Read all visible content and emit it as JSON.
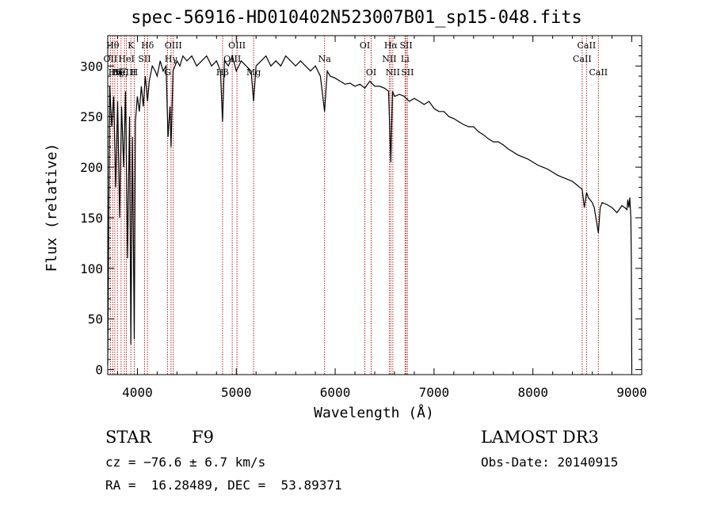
{
  "chart_data": {
    "type": "line",
    "title": "spec-56916-HD010402N523007B01_sp15-048.fits",
    "xlabel": "Wavelength (Å)",
    "ylabel": "Flux (relative)",
    "xlim": [
      3700,
      9100
    ],
    "ylim": [
      -5,
      330
    ],
    "x_ticks": [
      4000,
      5000,
      6000,
      7000,
      8000,
      9000
    ],
    "x_tick_labels": [
      "4000",
      "5000",
      "6000",
      "7000",
      "8000",
      "9000"
    ],
    "y_ticks": [
      0,
      50,
      100,
      150,
      200,
      250,
      300
    ],
    "y_tick_labels": [
      "0",
      "50",
      "100",
      "150",
      "200",
      "250",
      "300"
    ],
    "series": [
      {
        "name": "flux",
        "x": [
          3700,
          3720,
          3740,
          3760,
          3780,
          3800,
          3820,
          3840,
          3860,
          3880,
          3900,
          3920,
          3934,
          3950,
          3968,
          3980,
          4000,
          4020,
          4040,
          4060,
          4080,
          4102,
          4120,
          4150,
          4180,
          4200,
          4230,
          4260,
          4290,
          4310,
          4330,
          4340,
          4360,
          4380,
          4400,
          4430,
          4460,
          4500,
          4550,
          4600,
          4650,
          4700,
          4750,
          4800,
          4840,
          4861,
          4880,
          4920,
          4960,
          5000,
          5050,
          5100,
          5150,
          5175,
          5200,
          5250,
          5300,
          5350,
          5400,
          5450,
          5500,
          5550,
          5600,
          5650,
          5700,
          5750,
          5800,
          5850,
          5893,
          5920,
          5950,
          6000,
          6050,
          6100,
          6150,
          6200,
          6250,
          6300,
          6350,
          6400,
          6450,
          6500,
          6540,
          6563,
          6580,
          6600,
          6650,
          6700,
          6750,
          6800,
          6850,
          6900,
          6950,
          7000,
          7050,
          7100,
          7150,
          7200,
          7250,
          7300,
          7350,
          7400,
          7450,
          7500,
          7550,
          7600,
          7650,
          7700,
          7750,
          7800,
          7850,
          7900,
          7950,
          8000,
          8050,
          8100,
          8150,
          8200,
          8250,
          8300,
          8350,
          8400,
          8450,
          8498,
          8520,
          8542,
          8560,
          8600,
          8620,
          8662,
          8680,
          8700,
          8750,
          8800,
          8850,
          8900,
          8930,
          8950,
          8960,
          8970,
          8980,
          8990,
          8995,
          9000
        ],
        "y": [
          5,
          280,
          240,
          270,
          180,
          265,
          150,
          260,
          200,
          275,
          110,
          250,
          25,
          230,
          30,
          245,
          270,
          255,
          280,
          260,
          290,
          265,
          285,
          300,
          295,
          290,
          305,
          295,
          300,
          230,
          260,
          220,
          295,
          300,
          305,
          300,
          310,
          305,
          310,
          300,
          305,
          310,
          300,
          305,
          295,
          245,
          305,
          300,
          310,
          295,
          305,
          300,
          295,
          265,
          300,
          305,
          310,
          300,
          305,
          300,
          310,
          305,
          300,
          305,
          300,
          295,
          300,
          290,
          255,
          295,
          290,
          288,
          285,
          282,
          283,
          280,
          282,
          278,
          285,
          280,
          280,
          278,
          275,
          205,
          275,
          270,
          272,
          270,
          265,
          268,
          265,
          262,
          265,
          258,
          255,
          255,
          250,
          248,
          245,
          242,
          240,
          240,
          235,
          232,
          228,
          225,
          225,
          222,
          218,
          215,
          212,
          210,
          208,
          205,
          202,
          200,
          198,
          195,
          192,
          190,
          188,
          186,
          182,
          178,
          160,
          175,
          170,
          165,
          160,
          135,
          160,
          165,
          163,
          160,
          155,
          162,
          160,
          158,
          168,
          160,
          170,
          150,
          110,
          0
        ]
      }
    ],
    "line_markers": [
      {
        "wavelength": 3727,
        "label": "OII",
        "row": 2
      },
      {
        "wavelength": 3750,
        "label": "Hθ",
        "row": 1
      },
      {
        "wavelength": 3771,
        "label": "Hη",
        "row": 3
      },
      {
        "wavelength": 3798,
        "label": "Hζ",
        "row": 3
      },
      {
        "wavelength": 3835,
        "label": "Hζ",
        "row": 3
      },
      {
        "wavelength": 3869,
        "label": "NeIII",
        "row": 3
      },
      {
        "wavelength": 3889,
        "label": "HeI",
        "row": 2
      },
      {
        "wavelength": 3934,
        "label": "K",
        "row": 1
      },
      {
        "wavelength": 3968,
        "label": "H",
        "row": 3
      },
      {
        "wavelength": 4072,
        "label": "SII",
        "row": 2
      },
      {
        "wavelength": 4102,
        "label": "Hδ",
        "row": 1
      },
      {
        "wavelength": 4304,
        "label": "G",
        "row": 3
      },
      {
        "wavelength": 4340,
        "label": "Hγ",
        "row": 2
      },
      {
        "wavelength": 4363,
        "label": "OIII",
        "row": 1
      },
      {
        "wavelength": 4861,
        "label": "Hβ",
        "row": 3
      },
      {
        "wavelength": 4959,
        "label": "OIII",
        "row": 2
      },
      {
        "wavelength": 5007,
        "label": "OIII",
        "row": 1
      },
      {
        "wavelength": 5175,
        "label": "Mg",
        "row": 3
      },
      {
        "wavelength": 5893,
        "label": "Na",
        "row": 2
      },
      {
        "wavelength": 6300,
        "label": "OI",
        "row": 1
      },
      {
        "wavelength": 6364,
        "label": "OI",
        "row": 3
      },
      {
        "wavelength": 6548,
        "label": "NII",
        "row": 2
      },
      {
        "wavelength": 6563,
        "label": "Hα",
        "row": 1
      },
      {
        "wavelength": 6583,
        "label": "NII",
        "row": 3
      },
      {
        "wavelength": 6707,
        "label": "Li",
        "row": 2
      },
      {
        "wavelength": 6717,
        "label": "SII",
        "row": 1
      },
      {
        "wavelength": 6731,
        "label": "SII",
        "row": 3
      },
      {
        "wavelength": 8498,
        "label": "CaII",
        "row": 2
      },
      {
        "wavelength": 8542,
        "label": "CaII",
        "row": 1
      },
      {
        "wavelength": 8662,
        "label": "CaII",
        "row": 3
      }
    ]
  },
  "info": {
    "object_class": "STAR",
    "subclass": "F9",
    "survey": "LAMOST DR3",
    "redshift_text": "cz = −76.6 ± 6.7 km/s",
    "obs_date": "Obs-Date: 20140915",
    "coords": "RA =  16.28489, DEC =  53.89371"
  },
  "colors": {
    "spectrum": "#000000",
    "marker_lines": "#b22222",
    "axes": "#000000",
    "background": "#ffffff"
  }
}
